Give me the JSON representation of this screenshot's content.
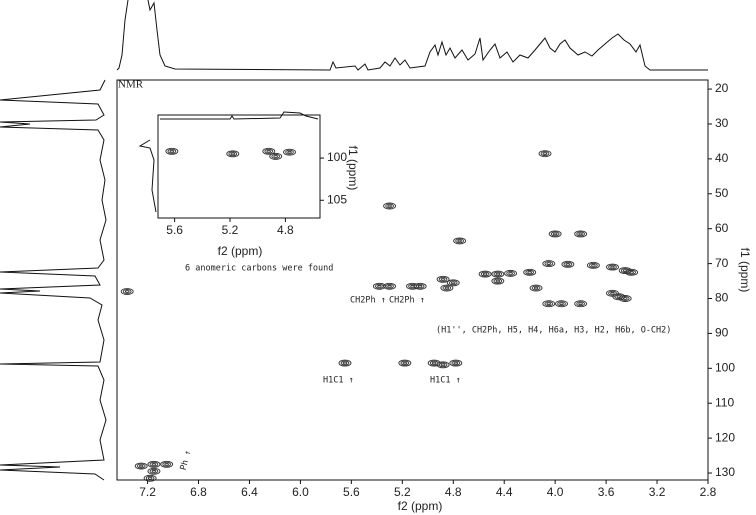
{
  "chart_data": {
    "type": "contour",
    "title": "NMR",
    "x_label": "f2 (ppm)",
    "y_label": "f1 (ppm)",
    "color": "#333333",
    "xlim": [
      7.44,
      2.8
    ],
    "ylim": [
      17.4,
      132
    ],
    "xticks": [
      7.2,
      6.8,
      6.4,
      {
        "value": 6,
        "label": "6.0"
      },
      5.6,
      5.2,
      4.8,
      4.4,
      {
        "value": 4,
        "label": "4.0"
      },
      3.6,
      3.2,
      2.8
    ],
    "yticks": [
      20,
      30,
      40,
      50,
      60,
      70,
      80,
      90,
      100,
      110,
      120,
      130
    ],
    "peaks": {
      "x": [
        4.08,
        5.3,
        4.75,
        4.0,
        3.8,
        5.38,
        5.3,
        5.12,
        5.06,
        4.88,
        4.8,
        4.85,
        4.55,
        4.45,
        4.35,
        4.2,
        4.05,
        3.9,
        3.7,
        3.55,
        3.45,
        3.4,
        3.55,
        3.5,
        3.45,
        4.05,
        3.95,
        3.8,
        4.45,
        4.15,
        5.65,
        5.18,
        4.95,
        4.88,
        4.78,
        7.36,
        7.25,
        7.15,
        7.05,
        7.15,
        7.18
      ],
      "y": [
        38.5,
        53.5,
        63.5,
        61.5,
        61.5,
        76.5,
        76.5,
        76.5,
        76.5,
        74.5,
        75.5,
        77,
        73,
        73,
        72.8,
        72.5,
        70,
        70.2,
        70.5,
        71,
        72,
        72.5,
        78.5,
        79.5,
        80,
        81.5,
        81.5,
        81.5,
        75,
        77,
        98.5,
        98.5,
        98.5,
        99,
        98.5,
        78,
        128,
        127.5,
        127.5,
        129.5,
        131.5
      ]
    },
    "annotations": [
      "6 anomeric carbons were found",
      "CH2Ph ↑",
      "CH2Ph ↑",
      "(H1'', CH2Ph, H5, H4, H6a, H3, H2, H6b, O-CH2)",
      "H1C1 ↑",
      "H1C1 ↑",
      "Ph ↑"
    ],
    "inset": {
      "x_label": "f2 (ppm)",
      "y_label": "f1 (ppm)",
      "xlim": [
        5.72,
        4.55
      ],
      "ylim": [
        94.9,
        107.1
      ],
      "xticks": [
        5.6,
        5.2,
        4.8
      ],
      "yticks": [
        100,
        105
      ],
      "peaks": {
        "x": [
          5.62,
          5.18,
          4.92,
          4.87,
          4.77
        ],
        "y": [
          99.2,
          99.5,
          99.2,
          99.8,
          99.3
        ]
      }
    }
  }
}
